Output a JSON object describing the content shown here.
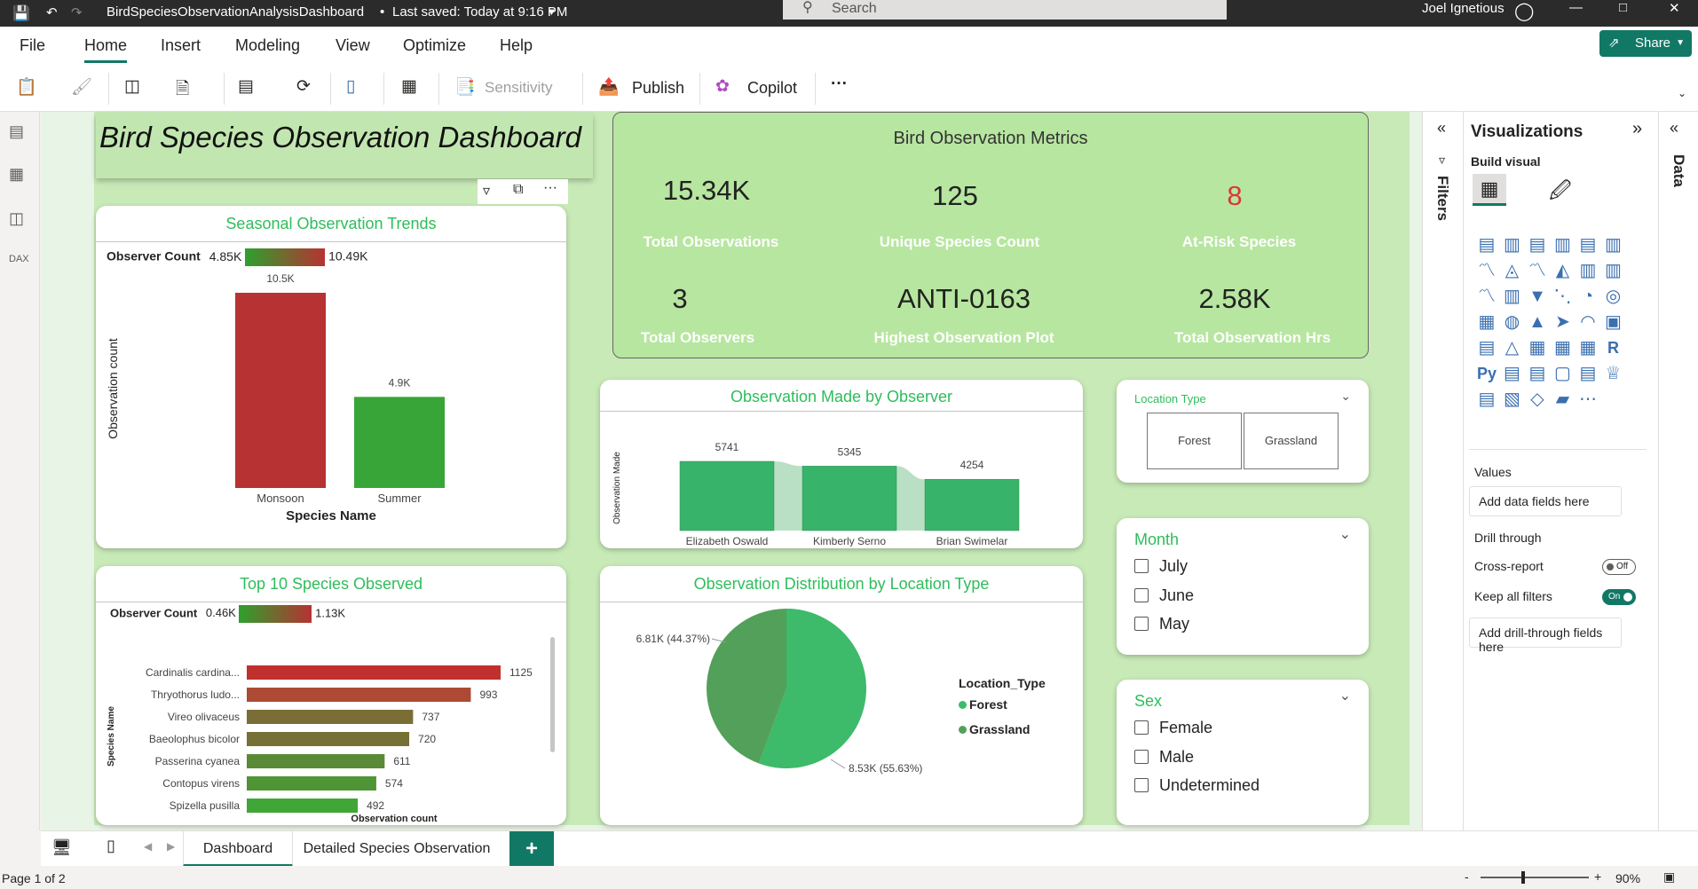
{
  "titlebar": {
    "filename": "BirdSpeciesObservationAnalysisDashboard",
    "saved": "Last saved: Today at 9:16 PM",
    "search": "Search",
    "user": "Joel Ignetious"
  },
  "menu": {
    "file": "File",
    "home": "Home",
    "insert": "Insert",
    "modeling": "Modeling",
    "view": "View",
    "optimize": "Optimize",
    "help": "Help",
    "share": "Share"
  },
  "ribbon": {
    "sensitivity": "Sensitivity",
    "publish": "Publish",
    "copilot": "Copilot",
    "more": "···"
  },
  "dashboard": {
    "title": "Bird Species Observation Dashboard"
  },
  "metrics": {
    "title": "Bird Observation Metrics",
    "total_obs": "15.34K",
    "total_obs_label": "Total Observations",
    "unique_species": "125",
    "unique_species_label": "Unique Species Count",
    "at_risk": "8",
    "at_risk_label": "At-Risk Species",
    "observers": "3",
    "observers_label": "Total Observers",
    "plot": "ANTI-0163",
    "plot_label": "Highest Observation Plot",
    "hrs": "2.58K",
    "hrs_label": "Total Observation Hrs"
  },
  "seasonal": {
    "title": "Seasonal Observation Trends",
    "legend_label": "Observer Count",
    "legend_min": "4.85K",
    "legend_max": "10.49K",
    "ylabel": "Observation count",
    "xlabel": "Species Name"
  },
  "observer_chart": {
    "title": "Observation Made by Observer",
    "ylabel": "Observation Made"
  },
  "top10": {
    "title": "Top 10 Species Observed",
    "legend_label": "Observer Count",
    "legend_min": "0.46K",
    "legend_max": "1.13K",
    "ylabel": "Species Name",
    "xlabel": "Observation count"
  },
  "pie": {
    "title": "Observation Distribution by Location Type",
    "legend_title": "Location_Type",
    "forest": "Forest",
    "grassland": "Grassland",
    "label_a": "6.81K (44.37%)",
    "label_b": "8.53K (55.63%)"
  },
  "slicer_location": {
    "title": "Location Type",
    "opt1": "Forest",
    "opt2": "Grassland"
  },
  "slicer_month": {
    "title": "Month",
    "opt1": "July",
    "opt2": "June",
    "opt3": "May"
  },
  "slicer_sex": {
    "title": "Sex",
    "opt1": "Female",
    "opt2": "Male",
    "opt3": "Undetermined"
  },
  "viz": {
    "title": "Visualizations",
    "build": "Build visual",
    "values": "Values",
    "add_fields": "Add data fields here",
    "drill": "Drill through",
    "cross": "Cross-report",
    "cross_state": "Off",
    "keep": "Keep all filters",
    "keep_state": "On",
    "add_drill": "Add drill-through fields here",
    "filters": "Filters",
    "data": "Data"
  },
  "tabs": {
    "t1": "Dashboard",
    "t2": "Detailed Species Observation",
    "add": "+"
  },
  "status": {
    "page": "Page 1 of 2",
    "zoom": "90%",
    "minus": "-",
    "plus": "+"
  },
  "chart_data": [
    {
      "type": "bar",
      "title": "Seasonal Observation Trends",
      "categories": [
        "Monsoon",
        "Summer"
      ],
      "values": [
        10.5,
        4.9
      ],
      "value_labels": [
        "10.5K",
        "4.9K"
      ],
      "colors": [
        "#b73232",
        "#38a538"
      ],
      "xlabel": "Species Name",
      "ylabel": "Observation count"
    },
    {
      "type": "bar",
      "title": "Observation Made by Observer",
      "categories": [
        "Elizabeth Oswald",
        "Kimberly Serno",
        "Brian Swimelar"
      ],
      "values": [
        5741,
        5345,
        4254
      ],
      "xlabel": "",
      "ylabel": "Observation Made"
    },
    {
      "type": "bar",
      "title": "Top 10 Species Observed",
      "orientation": "horizontal",
      "categories": [
        "Cardinalis cardina...",
        "Thryothorus ludo...",
        "Vireo olivaceus",
        "Baeolophus bicolor",
        "Passerina cyanea",
        "Contopus virens",
        "Spizella pusilla"
      ],
      "values": [
        1125,
        993,
        737,
        720,
        611,
        574,
        492
      ],
      "colors": [
        "#c0302e",
        "#ad4a34",
        "#7a6e36",
        "#766f36",
        "#5a8a36",
        "#4f9536",
        "#3fa637"
      ],
      "xlabel": "Observation count",
      "ylabel": "Species Name"
    },
    {
      "type": "pie",
      "title": "Observation Distribution by Location Type",
      "categories": [
        "Forest",
        "Grassland"
      ],
      "values": [
        6.81,
        8.53
      ],
      "percent": [
        44.37,
        55.63
      ],
      "colors": [
        "#52a05a",
        "#3dba6a"
      ]
    }
  ]
}
